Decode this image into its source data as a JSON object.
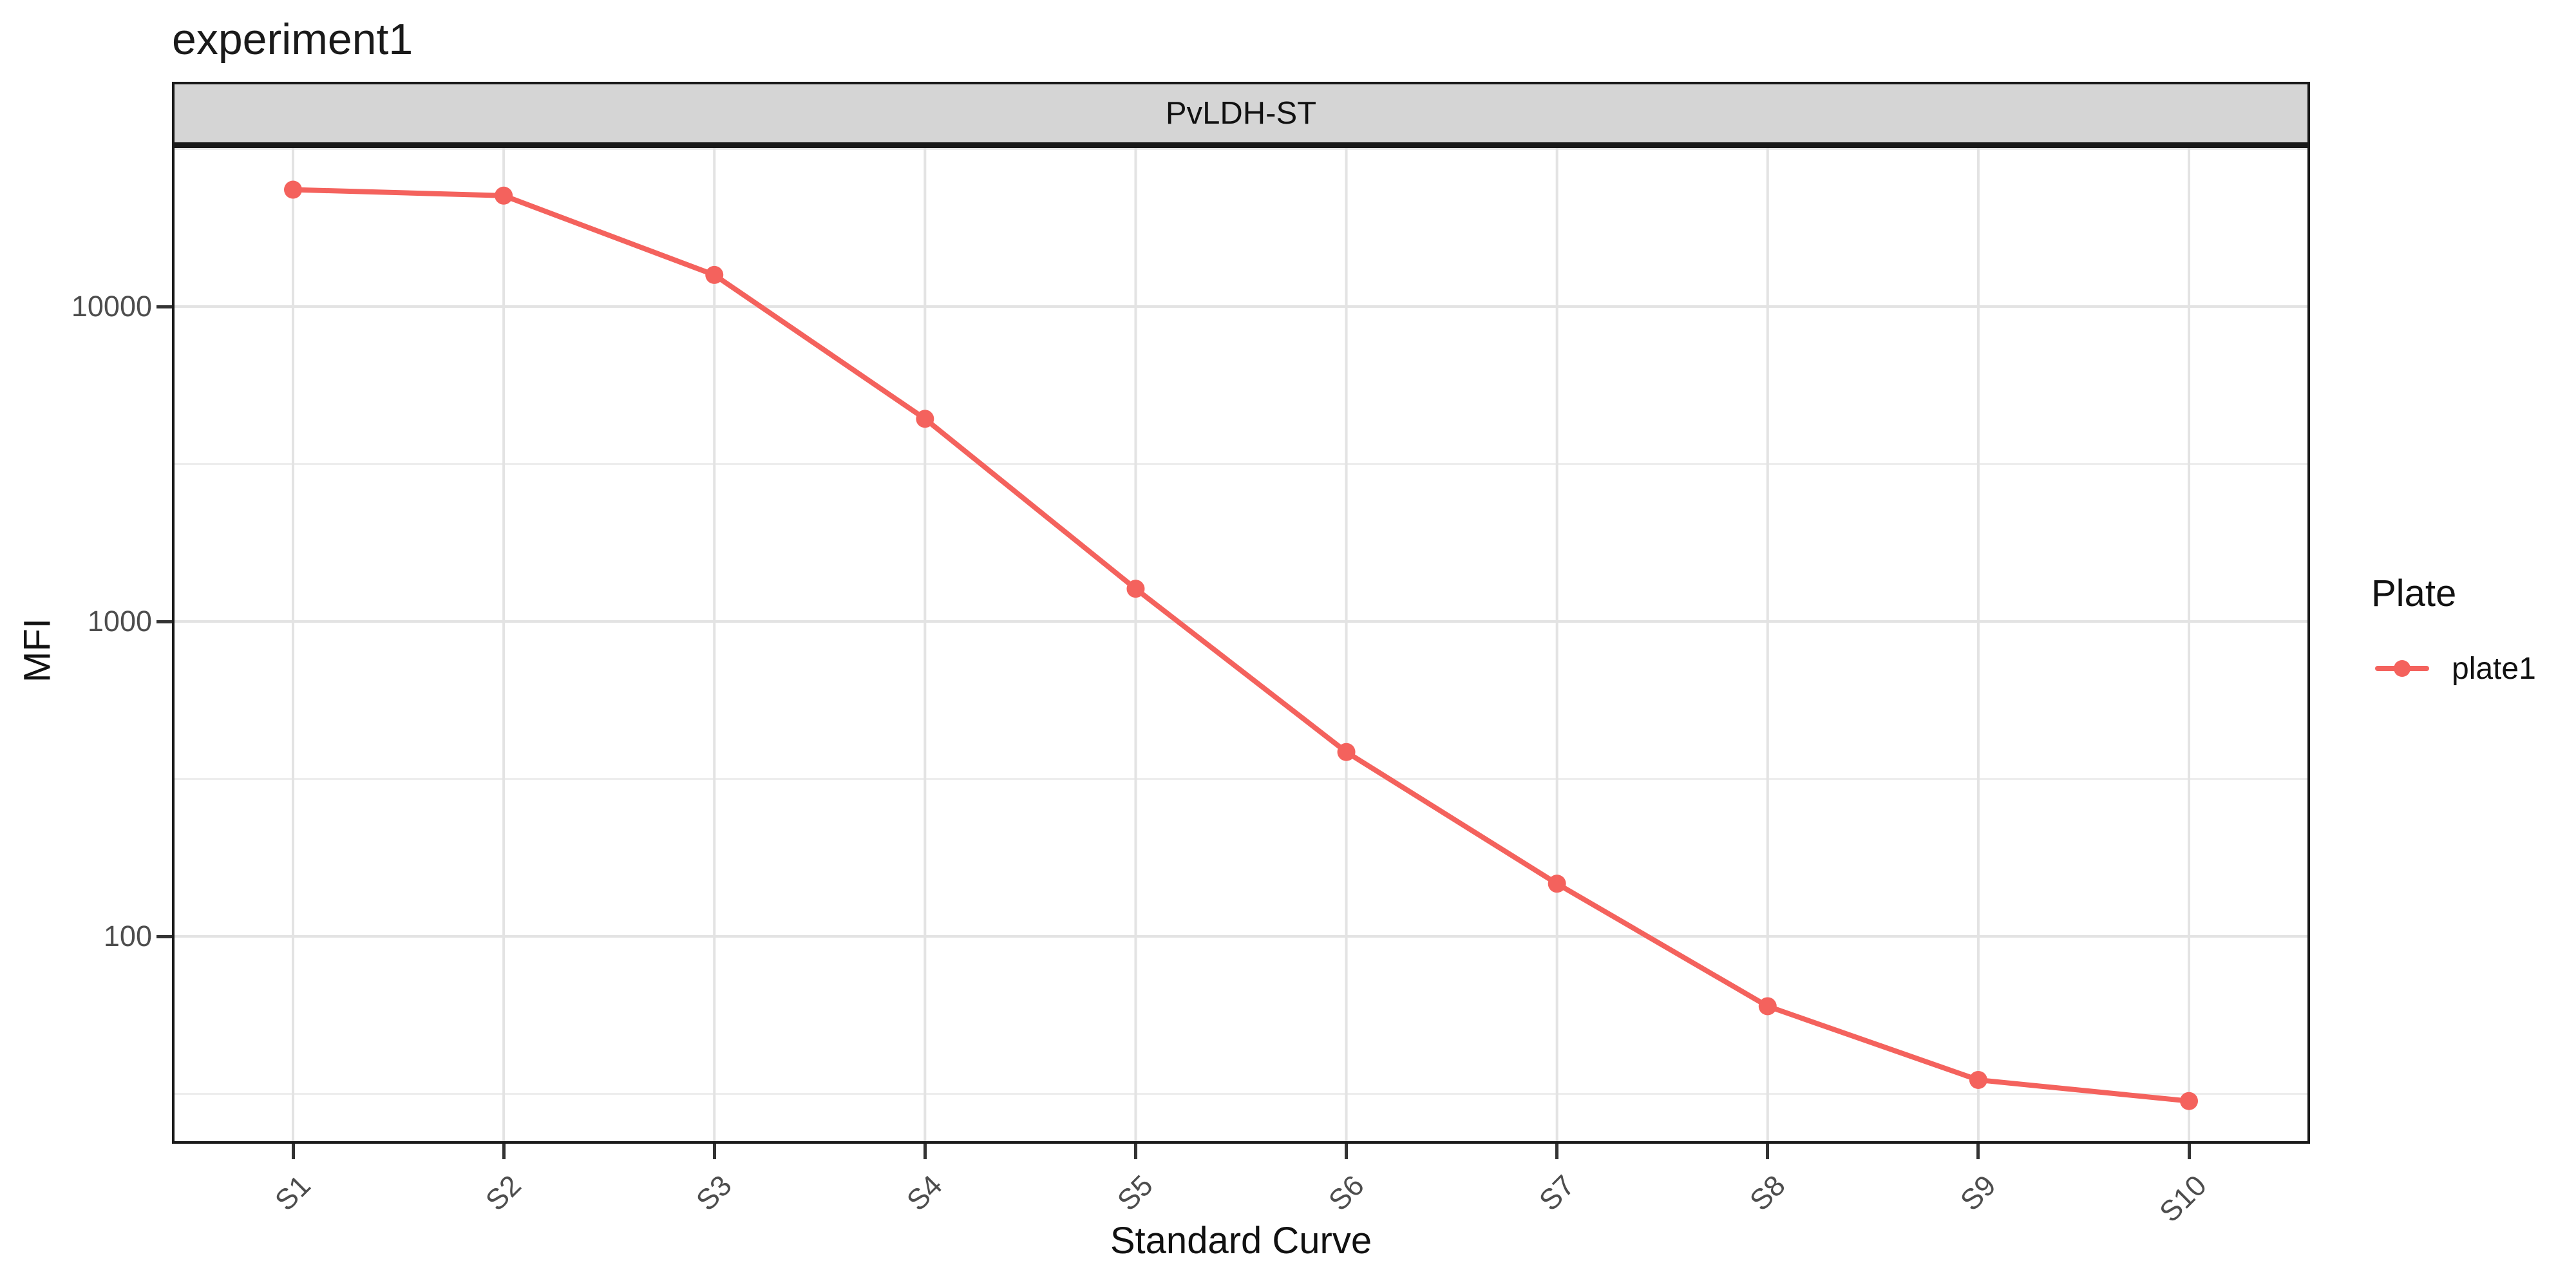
{
  "title": "experiment1",
  "facet_label": "PvLDH-ST",
  "legend": {
    "title": "Plate",
    "items": [
      {
        "label": "plate1",
        "color": "#F4625D"
      }
    ]
  },
  "colors": {
    "accent": "#F4625D",
    "strip_fill": "#D5D5D5",
    "panel_border": "#1A1A1A",
    "grid_major": "#E3E3E3",
    "grid_minor": "#EDEDED",
    "tick_mark": "#333333",
    "axis_text": "#4D4D4D"
  },
  "chart_data": {
    "type": "line",
    "title": "experiment1",
    "facet": "PvLDH-ST",
    "xlabel": "Standard Curve",
    "ylabel": "MFI",
    "y_scale": "log10",
    "ylim": [
      22,
      32000
    ],
    "y_ticks": [
      100,
      1000,
      10000
    ],
    "grid": "major and half-decade minor",
    "legend_position": "right",
    "categories": [
      "S1",
      "S2",
      "S3",
      "S4",
      "S5",
      "S6",
      "S7",
      "S8",
      "S9",
      "S10"
    ],
    "series": [
      {
        "name": "plate1",
        "color": "#F4625D",
        "values": [
          23500,
          22500,
          12600,
          4400,
          1270,
          385,
          147,
          60,
          35,
          30
        ]
      }
    ]
  }
}
